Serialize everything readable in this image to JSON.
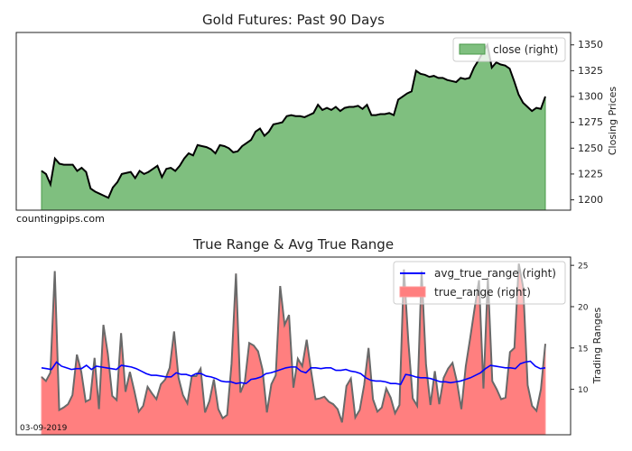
{
  "chart_data": [
    {
      "type": "area",
      "title": "Gold Futures: Past 90 Days",
      "ylabel": "Closing Prices",
      "y_axis_side": "right",
      "ylim": [
        1190,
        1362
      ],
      "yticks": [
        1200,
        1225,
        1250,
        1275,
        1300,
        1325,
        1350
      ],
      "grid": false,
      "legend_position": "top-right",
      "watermark": "countingpips.com",
      "series": [
        {
          "name": "close (right)",
          "fill": "#7fbf7f",
          "edge": "#4a9a4a",
          "line": "#000000",
          "values": [
            1228,
            1225,
            1215,
            1240,
            1235,
            1234,
            1234,
            1234,
            1228,
            1231,
            1227,
            1211,
            1208,
            1206,
            1204,
            1202,
            1212,
            1217,
            1225,
            1226,
            1227,
            1221,
            1228,
            1225,
            1227,
            1230,
            1233,
            1222,
            1230,
            1231,
            1228,
            1233,
            1240,
            1245,
            1243,
            1253,
            1252,
            1251,
            1249,
            1245,
            1253,
            1252,
            1250,
            1246,
            1247,
            1252,
            1255,
            1258,
            1266,
            1269,
            1262,
            1266,
            1273,
            1274,
            1275,
            1281,
            1282,
            1281,
            1281,
            1280,
            1282,
            1284,
            1292,
            1287,
            1289,
            1287,
            1290,
            1286,
            1289,
            1290,
            1290,
            1291,
            1288,
            1292,
            1282,
            1282,
            1283,
            1283,
            1284,
            1282,
            1297,
            1300,
            1303,
            1305,
            1325,
            1322,
            1321,
            1319,
            1320,
            1318,
            1318,
            1316,
            1315,
            1314,
            1318,
            1317,
            1318,
            1328,
            1335,
            1343,
            1350,
            1328,
            1333,
            1331,
            1330,
            1327,
            1315,
            1302,
            1294,
            1290,
            1286,
            1289,
            1288,
            1300
          ]
        }
      ]
    },
    {
      "type": "area",
      "title": "True Range & Avg True Range",
      "ylabel": "Trading Ranges",
      "y_axis_side": "right",
      "ylim": [
        4.5,
        26
      ],
      "yticks": [
        10,
        15,
        20,
        25
      ],
      "grid": false,
      "legend_position": "top-right",
      "date_label": "03-09-2019",
      "series": [
        {
          "name": "avg_true_range (right)",
          "kind": "line",
          "color": "#0000ff",
          "values": [
            12.6,
            12.5,
            12.4,
            13.3,
            12.8,
            12.6,
            12.4,
            12.5,
            12.5,
            12.9,
            12.4,
            12.8,
            12.7,
            12.6,
            12.5,
            12.4,
            12.9,
            12.8,
            12.7,
            12.5,
            12.2,
            11.9,
            11.7,
            11.7,
            11.6,
            11.5,
            11.5,
            12.0,
            11.8,
            11.8,
            11.6,
            11.9,
            11.9,
            11.6,
            11.5,
            11.3,
            11.0,
            10.9,
            10.9,
            10.7,
            10.8,
            10.7,
            11.2,
            11.3,
            11.5,
            11.9,
            12.0,
            12.2,
            12.4,
            12.6,
            12.7,
            12.7,
            12.2,
            12.0,
            12.6,
            12.6,
            12.5,
            12.6,
            12.6,
            12.3,
            12.3,
            12.4,
            12.2,
            12.1,
            11.9,
            11.4,
            11.1,
            11.0,
            11.0,
            10.9,
            10.7,
            10.7,
            10.6,
            11.8,
            11.7,
            11.5,
            11.4,
            11.4,
            11.3,
            11.1,
            10.9,
            10.9,
            10.8,
            10.9,
            11.0,
            11.2,
            11.4,
            11.7,
            12.0,
            12.5,
            12.9,
            12.8,
            12.7,
            12.6,
            12.6,
            12.5,
            13.1,
            13.3,
            13.4,
            12.8,
            12.5,
            12.6
          ]
        },
        {
          "name": "true_range (right)",
          "kind": "area",
          "fill": "#ff7f7f",
          "edge": "#ff9999",
          "line": "#696969",
          "values": [
            11.5,
            11.0,
            12.0,
            24.3,
            7.5,
            7.8,
            8.2,
            9.3,
            14.2,
            12.1,
            8.5,
            8.8,
            13.8,
            7.6,
            17.8,
            14.3,
            9.2,
            8.7,
            16.8,
            9.7,
            12.1,
            9.8,
            7.3,
            8.0,
            10.3,
            9.5,
            8.8,
            10.6,
            11.2,
            12.6,
            17.0,
            11.4,
            9.3,
            8.3,
            11.6,
            11.6,
            12.5,
            7.2,
            8.6,
            11.2,
            7.6,
            6.5,
            6.9,
            13.1,
            24.0,
            9.6,
            10.9,
            15.6,
            15.3,
            14.6,
            12.4,
            7.2,
            10.6,
            11.7,
            22.5,
            17.8,
            19.0,
            10.2,
            13.7,
            12.8,
            16.0,
            12.2,
            8.8,
            8.9,
            9.1,
            8.5,
            8.2,
            7.6,
            6.0,
            10.4,
            11.3,
            6.6,
            7.5,
            10.5,
            15.0,
            8.8,
            7.3,
            7.8,
            10.1,
            9.0,
            7.1,
            8.1,
            24.5,
            15.8,
            8.9,
            8.0,
            24.3,
            13.0,
            8.1,
            12.2,
            8.2,
            11.4,
            12.5,
            13.2,
            10.9,
            7.6,
            12.8,
            16.2,
            19.8,
            23.2,
            10.1,
            23.5,
            11.0,
            10.0,
            8.8,
            9.0,
            14.5,
            15.0,
            25.2,
            22.3,
            10.5,
            8.0,
            7.4,
            10.0,
            15.5
          ]
        }
      ]
    }
  ]
}
